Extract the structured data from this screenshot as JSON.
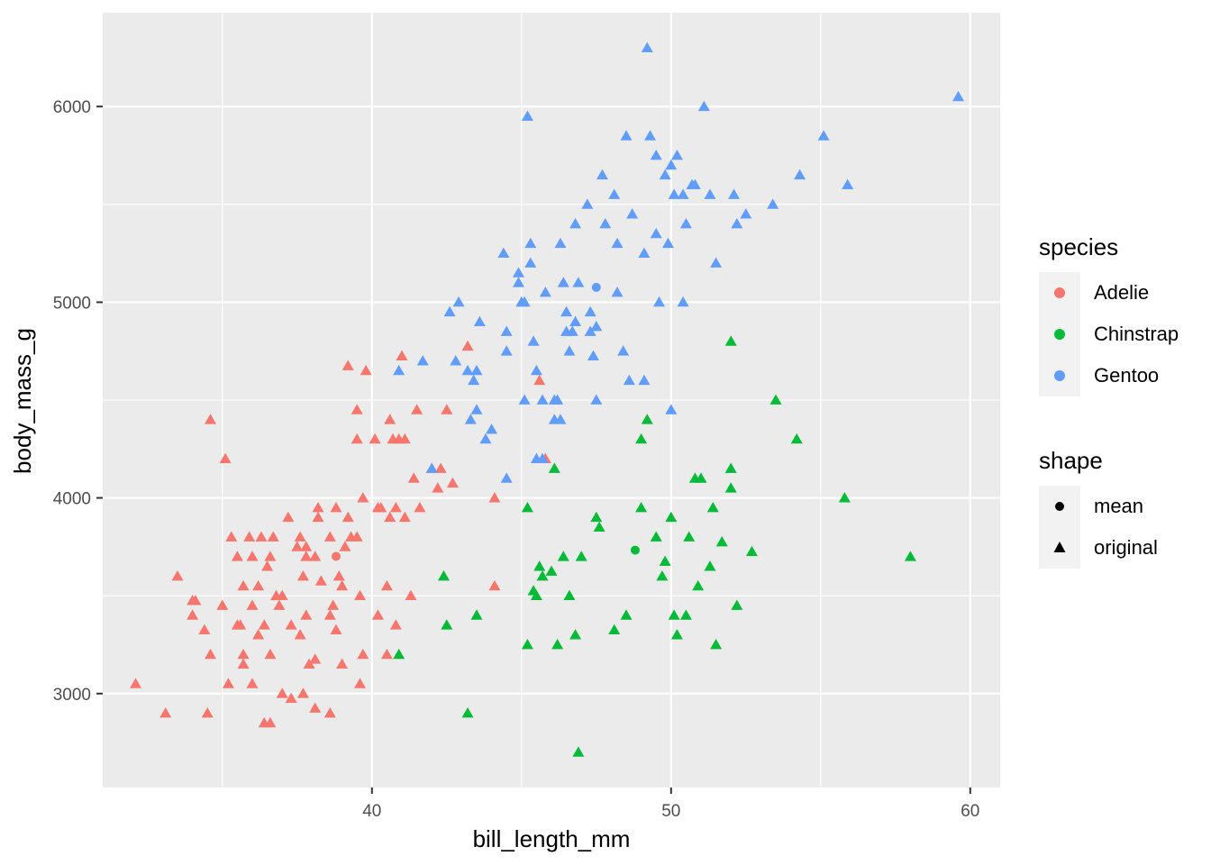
{
  "chart_data": {
    "type": "scatter",
    "title": "",
    "xlabel": "bill_length_mm",
    "ylabel": "body_mass_g",
    "xlim": [
      31.0,
      61.0
    ],
    "ylim": [
      2520,
      6480
    ],
    "x_ticks": [
      40,
      50,
      60
    ],
    "x_tick_labels": [
      "40",
      "50",
      "60"
    ],
    "y_ticks": [
      3000,
      4000,
      5000,
      6000
    ],
    "y_tick_labels": [
      "3000",
      "4000",
      "5000",
      "6000"
    ],
    "grid": true,
    "legend_position": "right",
    "legends": [
      {
        "title": "species",
        "items": [
          {
            "label": "Adelie",
            "color": "#F8766D"
          },
          {
            "label": "Chinstrap",
            "color": "#00BA38"
          },
          {
            "label": "Gentoo",
            "color": "#619CFF"
          }
        ]
      },
      {
        "title": "shape",
        "items": [
          {
            "label": "mean",
            "shape": "circle"
          },
          {
            "label": "original",
            "shape": "triangle"
          }
        ]
      }
    ],
    "series": [
      {
        "name": "Adelie",
        "color": "#F8766D",
        "mean": [
          38.8,
          3701
        ],
        "points": [
          [
            32.1,
            3050
          ],
          [
            33.1,
            2900
          ],
          [
            33.5,
            3600
          ],
          [
            34.0,
            3475
          ],
          [
            34.0,
            3400
          ],
          [
            34.1,
            3475
          ],
          [
            34.4,
            3325
          ],
          [
            34.5,
            2900
          ],
          [
            34.6,
            4400
          ],
          [
            34.6,
            3200
          ],
          [
            35.0,
            3450
          ],
          [
            35.1,
            4200
          ],
          [
            35.2,
            3050
          ],
          [
            35.3,
            3800
          ],
          [
            35.5,
            3350
          ],
          [
            35.5,
            3700
          ],
          [
            35.6,
            3350
          ],
          [
            35.7,
            3150
          ],
          [
            35.7,
            3550
          ],
          [
            35.7,
            3200
          ],
          [
            35.9,
            3800
          ],
          [
            36.0,
            3450
          ],
          [
            36.0,
            3050
          ],
          [
            36.0,
            3700
          ],
          [
            36.2,
            3550
          ],
          [
            36.2,
            3300
          ],
          [
            36.3,
            3800
          ],
          [
            36.4,
            3350
          ],
          [
            36.4,
            2850
          ],
          [
            36.5,
            3650
          ],
          [
            36.6,
            3700
          ],
          [
            36.6,
            3200
          ],
          [
            36.6,
            2850
          ],
          [
            36.7,
            3800
          ],
          [
            36.8,
            3500
          ],
          [
            36.9,
            3450
          ],
          [
            37.0,
            3500
          ],
          [
            37.0,
            3000
          ],
          [
            37.2,
            3900
          ],
          [
            37.3,
            3350
          ],
          [
            37.3,
            2975
          ],
          [
            37.5,
            3750
          ],
          [
            37.6,
            3800
          ],
          [
            37.6,
            3300
          ],
          [
            37.7,
            3600
          ],
          [
            37.7,
            3000
          ],
          [
            37.8,
            3700
          ],
          [
            37.8,
            3400
          ],
          [
            37.8,
            3750
          ],
          [
            37.9,
            3150
          ],
          [
            38.1,
            3700
          ],
          [
            38.1,
            3175
          ],
          [
            38.1,
            2925
          ],
          [
            38.2,
            3950
          ],
          [
            38.2,
            3900
          ],
          [
            38.3,
            3575
          ],
          [
            38.6,
            3800
          ],
          [
            38.6,
            3400
          ],
          [
            38.6,
            2900
          ],
          [
            38.7,
            3450
          ],
          [
            38.8,
            3950
          ],
          [
            38.8,
            3325
          ],
          [
            38.9,
            3600
          ],
          [
            39.0,
            3550
          ],
          [
            39.0,
            3150
          ],
          [
            39.1,
            3750
          ],
          [
            39.2,
            4675
          ],
          [
            39.2,
            3900
          ],
          [
            39.3,
            3800
          ],
          [
            39.5,
            4450
          ],
          [
            39.5,
            4300
          ],
          [
            39.5,
            3800
          ],
          [
            39.6,
            3500
          ],
          [
            39.6,
            3050
          ],
          [
            39.7,
            4000
          ],
          [
            39.7,
            3200
          ],
          [
            39.8,
            4650
          ],
          [
            40.1,
            4300
          ],
          [
            40.2,
            3400
          ],
          [
            40.2,
            3950
          ],
          [
            40.3,
            3950
          ],
          [
            40.5,
            3550
          ],
          [
            40.5,
            3200
          ],
          [
            40.6,
            4400
          ],
          [
            40.6,
            3900
          ],
          [
            40.7,
            4300
          ],
          [
            40.8,
            3950
          ],
          [
            40.8,
            3350
          ],
          [
            40.9,
            4300
          ],
          [
            41.0,
            4725
          ],
          [
            41.1,
            3900
          ],
          [
            41.1,
            4300
          ],
          [
            41.3,
            3500
          ],
          [
            41.4,
            4100
          ],
          [
            41.5,
            4450
          ],
          [
            41.6,
            3950
          ],
          [
            42.0,
            4150
          ],
          [
            42.2,
            4050
          ],
          [
            42.3,
            4150
          ],
          [
            42.5,
            4450
          ],
          [
            42.7,
            4075
          ],
          [
            43.2,
            4775
          ],
          [
            44.1,
            4000
          ],
          [
            44.1,
            3550
          ],
          [
            45.6,
            4600
          ],
          [
            45.8,
            4200
          ]
        ]
      },
      {
        "name": "Chinstrap",
        "color": "#00BA38",
        "mean": [
          48.8,
          3733
        ],
        "points": [
          [
            40.9,
            3200
          ],
          [
            42.4,
            3600
          ],
          [
            42.5,
            3350
          ],
          [
            43.2,
            2900
          ],
          [
            43.5,
            3400
          ],
          [
            45.2,
            3950
          ],
          [
            45.2,
            3250
          ],
          [
            45.4,
            3525
          ],
          [
            45.5,
            3500
          ],
          [
            45.6,
            3650
          ],
          [
            45.7,
            3600
          ],
          [
            46.0,
            3625
          ],
          [
            46.1,
            4150
          ],
          [
            46.2,
            3250
          ],
          [
            46.4,
            3700
          ],
          [
            46.6,
            3500
          ],
          [
            46.8,
            3300
          ],
          [
            46.9,
            2700
          ],
          [
            47.0,
            3700
          ],
          [
            47.5,
            3900
          ],
          [
            47.6,
            3850
          ],
          [
            48.1,
            3325
          ],
          [
            48.5,
            3400
          ],
          [
            49.0,
            3950
          ],
          [
            49.0,
            4300
          ],
          [
            49.2,
            4400
          ],
          [
            49.5,
            3800
          ],
          [
            49.7,
            3600
          ],
          [
            49.8,
            3675
          ],
          [
            50.0,
            3900
          ],
          [
            50.1,
            3400
          ],
          [
            50.2,
            3300
          ],
          [
            50.5,
            3400
          ],
          [
            50.6,
            3800
          ],
          [
            50.8,
            4100
          ],
          [
            50.9,
            3550
          ],
          [
            51.0,
            4100
          ],
          [
            51.3,
            3650
          ],
          [
            51.4,
            3950
          ],
          [
            51.5,
            3250
          ],
          [
            51.7,
            3775
          ],
          [
            52.0,
            4150
          ],
          [
            52.0,
            4050
          ],
          [
            52.2,
            3450
          ],
          [
            52.7,
            3725
          ],
          [
            53.5,
            4500
          ],
          [
            54.2,
            4300
          ],
          [
            55.8,
            4000
          ],
          [
            58.0,
            3700
          ],
          [
            52.0,
            4800
          ]
        ]
      },
      {
        "name": "Gentoo",
        "color": "#619CFF",
        "mean": [
          47.5,
          5076
        ],
        "points": [
          [
            40.9,
            4650
          ],
          [
            41.7,
            4700
          ],
          [
            42.0,
            4150
          ],
          [
            42.6,
            4950
          ],
          [
            42.8,
            4700
          ],
          [
            42.9,
            5000
          ],
          [
            43.2,
            4650
          ],
          [
            43.3,
            4400
          ],
          [
            43.4,
            4600
          ],
          [
            43.5,
            4650
          ],
          [
            43.6,
            4900
          ],
          [
            43.8,
            4300
          ],
          [
            44.0,
            4350
          ],
          [
            44.4,
            5250
          ],
          [
            44.5,
            4850
          ],
          [
            44.5,
            4100
          ],
          [
            44.9,
            5100
          ],
          [
            45.0,
            5000
          ],
          [
            45.1,
            5000
          ],
          [
            45.2,
            5950
          ],
          [
            45.3,
            5300
          ],
          [
            45.4,
            4800
          ],
          [
            45.5,
            4650
          ],
          [
            45.7,
            4500
          ],
          [
            45.8,
            5050
          ],
          [
            46.1,
            4500
          ],
          [
            46.2,
            4500
          ],
          [
            46.3,
            5300
          ],
          [
            46.4,
            5100
          ],
          [
            46.5,
            4850
          ],
          [
            46.6,
            4750
          ],
          [
            46.8,
            4900
          ],
          [
            46.9,
            5100
          ],
          [
            47.2,
            5500
          ],
          [
            47.3,
            4950
          ],
          [
            47.4,
            4725
          ],
          [
            47.5,
            4500
          ],
          [
            47.7,
            5650
          ],
          [
            48.1,
            5550
          ],
          [
            48.2,
            5050
          ],
          [
            48.4,
            4750
          ],
          [
            48.5,
            5850
          ],
          [
            48.7,
            5450
          ],
          [
            49.1,
            5250
          ],
          [
            49.2,
            6300
          ],
          [
            49.3,
            5850
          ],
          [
            49.5,
            5750
          ],
          [
            49.8,
            5650
          ],
          [
            50.0,
            5700
          ],
          [
            50.1,
            5550
          ],
          [
            50.2,
            5750
          ],
          [
            50.4,
            5550
          ],
          [
            50.5,
            5400
          ],
          [
            50.7,
            5600
          ],
          [
            50.8,
            5600
          ],
          [
            51.1,
            6000
          ],
          [
            51.3,
            5550
          ],
          [
            51.5,
            5200
          ],
          [
            52.1,
            5550
          ],
          [
            52.2,
            5400
          ],
          [
            52.5,
            5450
          ],
          [
            53.4,
            5500
          ],
          [
            54.3,
            5650
          ],
          [
            55.1,
            5850
          ],
          [
            55.9,
            5600
          ],
          [
            59.6,
            6050
          ],
          [
            44.9,
            5150
          ],
          [
            46.5,
            4950
          ],
          [
            47.8,
            5400
          ],
          [
            48.6,
            4600
          ],
          [
            49.6,
            5000
          ],
          [
            50.0,
            4450
          ],
          [
            45.5,
            4200
          ],
          [
            46.1,
            4400
          ],
          [
            47.3,
            4850
          ],
          [
            48.2,
            5300
          ],
          [
            49.9,
            5300
          ],
          [
            43.5,
            4450
          ],
          [
            45.1,
            4500
          ],
          [
            46.8,
            5400
          ],
          [
            45.7,
            4200
          ],
          [
            46.3,
            4400
          ],
          [
            47.5,
            4875
          ],
          [
            49.5,
            5350
          ],
          [
            50.4,
            5000
          ],
          [
            45.3,
            5200
          ],
          [
            46.7,
            4850
          ],
          [
            44.5,
            4750
          ],
          [
            49.1,
            4600
          ]
        ]
      }
    ]
  }
}
